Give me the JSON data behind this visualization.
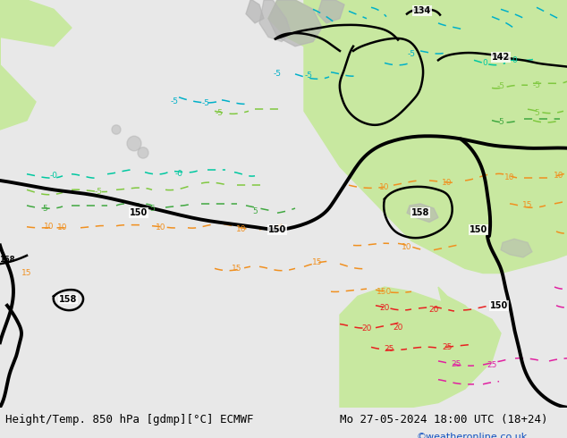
{
  "title_left": "Height/Temp. 850 hPa [gdmp][°C] ECMWF",
  "title_right": "Mo 27-05-2024 18:00 UTC (18+24)",
  "copyright": "©weatheronline.co.uk",
  "fig_width": 6.34,
  "fig_height": 4.9,
  "dpi": 100,
  "color_ocean": "#e8e8e8",
  "color_land_green": "#c8e8a0",
  "color_land_green2": "#d8f0b8",
  "color_gray_terrain": "#b4b4b4",
  "color_black": "#000000",
  "color_cyan": "#00b0c8",
  "color_teal": "#00c8a0",
  "color_limegreen": "#80c840",
  "color_green": "#40a840",
  "color_orange": "#f09020",
  "color_red": "#e82020",
  "color_pink": "#e020a0",
  "title_fontsize": 9,
  "copyright_fontsize": 8,
  "copyright_color": "#1050c0"
}
